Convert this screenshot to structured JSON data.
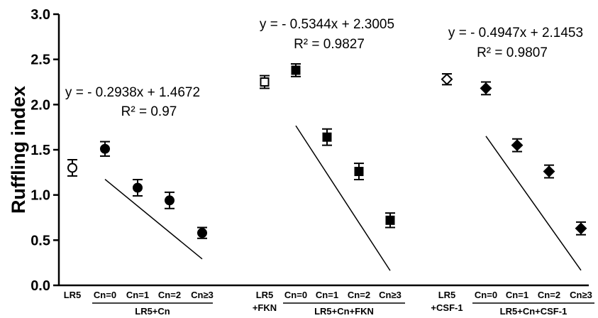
{
  "chart_data": {
    "type": "scatter",
    "title": "",
    "xlabel": "",
    "ylabel": "Ruffling index",
    "ylim": [
      0,
      3.0
    ],
    "yticks": [
      "0.0",
      "0.5",
      "1.0",
      "1.5",
      "2.0",
      "2.5",
      "3.0"
    ],
    "grid": false,
    "categories": [
      "LR5",
      "Cn=0",
      "Cn=1",
      "Cn=2",
      "Cn≥3",
      "LR5\n+FKN",
      "Cn=0",
      "Cn=1",
      "Cn=2",
      "Cn≥3",
      "LR5\n+CSF-1",
      "Cn=0",
      "Cn=1",
      "Cn=2",
      "Cn≥3"
    ],
    "groups": [
      {
        "control": {
          "label": [
            "LR5"
          ],
          "marker": "circle-open",
          "value": 1.3,
          "err": 0.09
        },
        "series_label": "LR5+Cn",
        "marker": "circle-filled",
        "categories": [
          "Cn=0",
          "Cn=1",
          "Cn=2",
          "Cn≥3"
        ],
        "values": [
          1.51,
          1.08,
          0.94,
          0.58
        ],
        "errors": [
          0.08,
          0.09,
          0.09,
          0.06
        ],
        "fit": {
          "slope": -0.2938,
          "intercept": 1.4672
        },
        "equation": "y = - 0.2938x + 1.4672",
        "r2": "R² = 0.97"
      },
      {
        "control": {
          "label": [
            "LR5",
            "+FKN"
          ],
          "marker": "square-open",
          "value": 2.25,
          "err": 0.07
        },
        "series_label": "LR5+Cn+FKN",
        "marker": "square-filled",
        "categories": [
          "Cn=0",
          "Cn=1",
          "Cn=2",
          "Cn≥3"
        ],
        "values": [
          2.38,
          1.64,
          1.26,
          0.72
        ],
        "errors": [
          0.07,
          0.09,
          0.09,
          0.08
        ],
        "fit": {
          "slope": -0.5344,
          "intercept": 2.3005
        },
        "equation": "y = - 0.5344x + 2.3005",
        "r2": "R² = 0.9827"
      },
      {
        "control": {
          "label": [
            "LR5",
            "+CSF-1"
          ],
          "marker": "diamond-open",
          "value": 2.28,
          "err": 0.06
        },
        "series_label": "LR5+Cn+CSF-1",
        "marker": "diamond-filled",
        "categories": [
          "Cn=0",
          "Cn=1",
          "Cn=2",
          "Cn≥3"
        ],
        "values": [
          2.18,
          1.55,
          1.26,
          0.63
        ],
        "errors": [
          0.07,
          0.07,
          0.07,
          0.07
        ],
        "fit": {
          "slope": -0.4947,
          "intercept": 2.1453
        },
        "equation": "y = - 0.4947x + 2.1453",
        "r2": "R² = 0.9807"
      }
    ]
  }
}
